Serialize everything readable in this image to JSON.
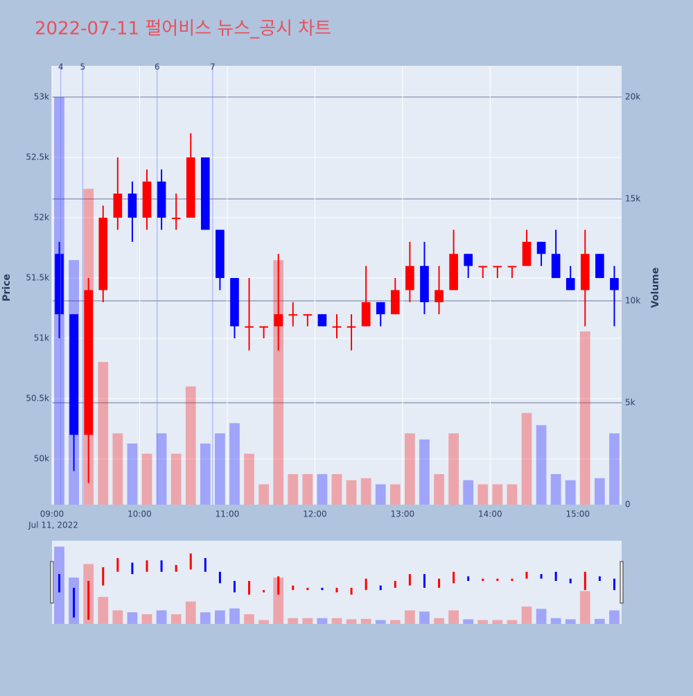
{
  "chart_data": {
    "type": "candlestick",
    "title": "2022-07-11 펄어비스 뉴스_공시 차트",
    "y_label": "Price",
    "y2_label": "Volume",
    "x": [
      "09:00",
      "09:10",
      "09:20",
      "09:30",
      "09:40",
      "09:50",
      "10:00",
      "10:10",
      "10:20",
      "10:30",
      "10:40",
      "10:50",
      "11:00",
      "11:10",
      "11:20",
      "11:30",
      "11:40",
      "11:50",
      "12:00",
      "12:10",
      "12:20",
      "12:30",
      "12:40",
      "12:50",
      "13:00",
      "13:10",
      "13:20",
      "13:30",
      "13:40",
      "13:50",
      "14:00",
      "14:10",
      "14:20",
      "14:30",
      "14:40",
      "14:50",
      "15:00",
      "15:10",
      "15:20"
    ],
    "open": [
      51700,
      51200,
      50200,
      51400,
      52000,
      52200,
      52000,
      52300,
      52000,
      52000,
      52500,
      51900,
      51500,
      51100,
      51100,
      51100,
      51200,
      51200,
      51200,
      51100,
      51100,
      51100,
      51300,
      51200,
      51400,
      51600,
      51300,
      51400,
      51700,
      51600,
      51600,
      51600,
      51600,
      51800,
      51700,
      51500,
      51400,
      51700,
      51500
    ],
    "high": [
      51800,
      51200,
      51500,
      52100,
      52500,
      52300,
      52400,
      52400,
      52200,
      52700,
      52500,
      51900,
      51500,
      51500,
      51100,
      51700,
      51300,
      51200,
      51200,
      51200,
      51200,
      51600,
      51300,
      51500,
      51800,
      51800,
      51600,
      51900,
      51700,
      51600,
      51600,
      51600,
      51900,
      51800,
      51900,
      51600,
      51900,
      51700,
      51600
    ],
    "low": [
      51000,
      49900,
      49800,
      51300,
      51900,
      51800,
      51900,
      51900,
      51900,
      52000,
      51900,
      51400,
      51000,
      50900,
      51000,
      50900,
      51100,
      51100,
      51100,
      51000,
      50900,
      51100,
      51100,
      51200,
      51300,
      51200,
      51200,
      51400,
      51500,
      51500,
      51500,
      51500,
      51600,
      51600,
      51500,
      51400,
      51100,
      51500,
      51100
    ],
    "close": [
      51200,
      50200,
      51400,
      52000,
      52200,
      52000,
      52300,
      52000,
      52000,
      52500,
      51900,
      51500,
      51100,
      51100,
      51100,
      51200,
      51200,
      51200,
      51100,
      51100,
      51100,
      51300,
      51200,
      51400,
      51600,
      51300,
      51400,
      51700,
      51600,
      51600,
      51600,
      51600,
      51800,
      51700,
      51500,
      51400,
      51700,
      51500,
      51400
    ],
    "volume": [
      20000,
      12000,
      15500,
      7000,
      3500,
      3000,
      2500,
      3500,
      2500,
      5800,
      3000,
      3500,
      4000,
      2500,
      1000,
      12000,
      1500,
      1500,
      1500,
      1500,
      1200,
      1300,
      1000,
      1000,
      3500,
      3200,
      1500,
      3500,
      1200,
      1000,
      1000,
      1000,
      4500,
      3900,
      1500,
      1200,
      8500,
      1300,
      3500
    ],
    "increasing_color": "#ff0000",
    "decreasing_color": "#0000ff",
    "xlim": [
      "09:00",
      "15:30"
    ],
    "xticks": [
      "09:00",
      "10:00",
      "11:00",
      "12:00",
      "13:00",
      "14:00",
      "15:00"
    ],
    "x_date_label": "Jul 11, 2022",
    "ylim": [
      49621,
      53259
    ],
    "yticks": [
      {
        "value": 50000,
        "label": "50k"
      },
      {
        "value": 50500,
        "label": "50.5k"
      },
      {
        "value": 51000,
        "label": "51k"
      },
      {
        "value": 51500,
        "label": "51.5k"
      },
      {
        "value": 52000,
        "label": "52k"
      },
      {
        "value": 52500,
        "label": "52.5k"
      },
      {
        "value": 53000,
        "label": "53k"
      }
    ],
    "y2lim": [
      0,
      21531
    ],
    "y2ticks": [
      0,
      {
        "value": 5000,
        "label": "5k"
      },
      {
        "value": 10000,
        "label": "10k"
      },
      {
        "value": 15000,
        "label": "15k"
      },
      {
        "value": 20000,
        "label": "20k"
      }
    ],
    "events": [
      {
        "label": "4",
        "x": "09:06"
      },
      {
        "label": "5",
        "x": "09:21"
      },
      {
        "label": "6",
        "x": "10:12"
      },
      {
        "label": "7",
        "x": "10:50"
      }
    ],
    "grid": true,
    "range_slider": true
  }
}
